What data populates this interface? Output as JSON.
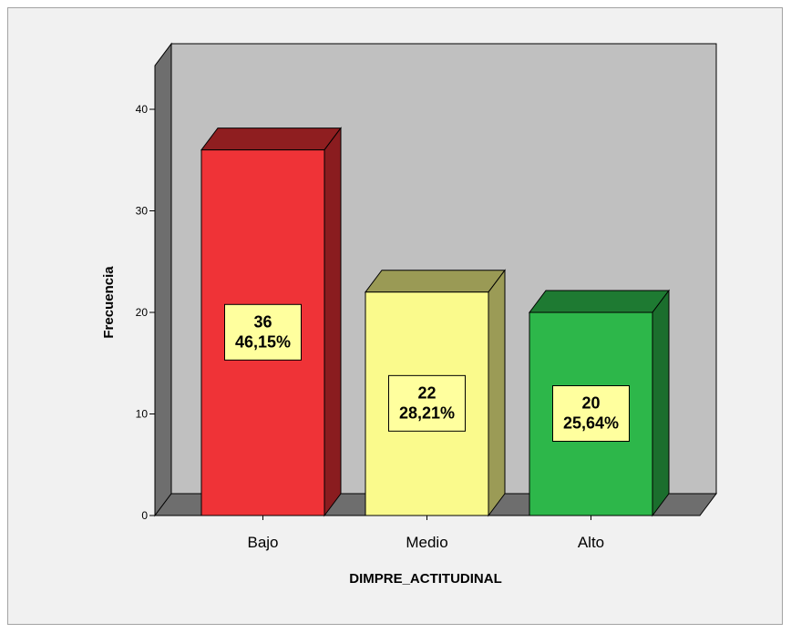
{
  "chart_data": {
    "type": "bar",
    "style": "3d",
    "categories": [
      "Bajo",
      "Medio",
      "Alto"
    ],
    "values": [
      36,
      22,
      20
    ],
    "percent_labels": [
      "46,15%",
      "28,21%",
      "25,64%"
    ],
    "colors": {
      "bar_front": [
        "#ef3337",
        "#fafa8c",
        "#2db74a"
      ],
      "bar_top": [
        "#8f1e20",
        "#9a9a55",
        "#1e7a32"
      ],
      "bar_side": [
        "#8a1c1f",
        "#9b9b56",
        "#1b6e2d"
      ],
      "back_wall": "#c0c0c0",
      "side_wall": "#6e6e6e",
      "floor": "#6e6e6e",
      "label_box": "#ffff9e",
      "background": "#f1f1f1"
    },
    "xlabel": "DIMPRE_ACTITUDINAL",
    "ylabel": "Frecuencia",
    "yticks": [
      0,
      10,
      20,
      30,
      40
    ],
    "ylim": [
      0,
      40
    ],
    "grid": false,
    "legend": "none"
  }
}
